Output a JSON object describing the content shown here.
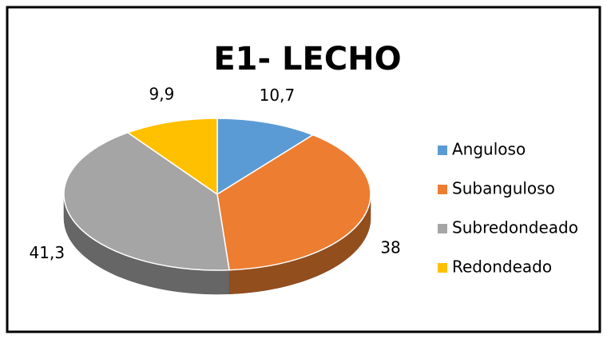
{
  "chart_data": {
    "type": "pie3d",
    "title": "E1- LECHO",
    "categories": [
      "Anguloso",
      "Subanguloso",
      "Subredondeado",
      "Redondeado"
    ],
    "values": [
      10.7,
      38,
      41.3,
      9.9
    ],
    "value_labels": [
      "10,7",
      "38",
      "41,3",
      "9,9"
    ],
    "colors": [
      "#5b9bd5",
      "#ed7d31",
      "#a5a5a5",
      "#ffc000"
    ],
    "legend": "right"
  }
}
